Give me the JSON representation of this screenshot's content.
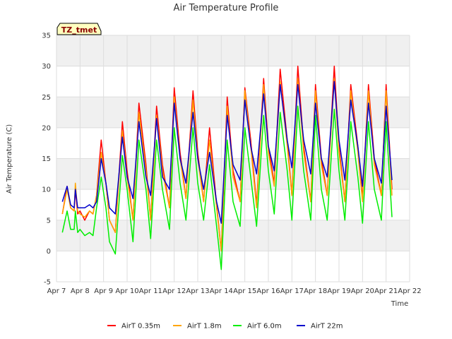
{
  "chart_data": {
    "type": "line",
    "title": "Air Temperature Profile",
    "xlabel": "Time",
    "ylabel": "Air Temperature (C)",
    "station_label": "TZ_tmet",
    "ylim": [
      -5,
      35
    ],
    "y_ticks": [
      -5,
      0,
      5,
      10,
      15,
      20,
      25,
      30,
      35
    ],
    "xlim": [
      7,
      22
    ],
    "x_ticks": [
      7,
      8,
      9,
      10,
      11,
      12,
      13,
      14,
      15,
      16,
      17,
      18,
      19,
      20,
      21,
      22
    ],
    "x_tick_labels": [
      "Apr 7",
      "Apr 8",
      "Apr 9",
      "Apr 10",
      "Apr 11",
      "Apr 12",
      "Apr 13",
      "Apr 14",
      "Apr 15",
      "Apr 16",
      "Apr 17",
      "Apr 18",
      "Apr 19",
      "Apr 20",
      "Apr 21",
      "Apr 22"
    ],
    "grid": true,
    "legend_position": "bottom",
    "series": [
      {
        "name": "AirT 0.35m",
        "color": "#ff0000",
        "x": [
          7.25,
          7.45,
          7.6,
          7.75,
          7.8,
          7.9,
          8.0,
          8.2,
          8.4,
          8.55,
          8.7,
          8.9,
          9.1,
          9.25,
          9.5,
          9.8,
          10.0,
          10.25,
          10.5,
          10.8,
          11.0,
          11.25,
          11.5,
          11.8,
          12.0,
          12.25,
          12.5,
          12.8,
          13.0,
          13.25,
          13.5,
          13.8,
          14.0,
          14.25,
          14.5,
          14.8,
          15.0,
          15.25,
          15.5,
          15.8,
          16.0,
          16.25,
          16.5,
          16.8,
          17.0,
          17.25,
          17.5,
          17.8,
          18.0,
          18.25,
          18.5,
          18.8,
          19.0,
          19.25,
          19.5,
          19.8,
          20.0,
          20.25,
          20.5,
          20.8,
          21.0,
          21.25
        ],
        "y": [
          6,
          10.5,
          7,
          6.5,
          10,
          6,
          6.5,
          5,
          6.5,
          6,
          9,
          18,
          11,
          5,
          3,
          21,
          13,
          5,
          24,
          14,
          5,
          23.5,
          14,
          7,
          26.5,
          16,
          8.5,
          26,
          16,
          8,
          20,
          7.5,
          0,
          25,
          13,
          8,
          26.5,
          18,
          7.5,
          28,
          17,
          11,
          29.5,
          18,
          9,
          30,
          17,
          8,
          27,
          15,
          9,
          30,
          17,
          8,
          27,
          17,
          8.5,
          27,
          15,
          9,
          27,
          10
        ]
      },
      {
        "name": "AirT 1.8m",
        "color": "#ffa500",
        "x": [
          7.25,
          7.45,
          7.6,
          7.75,
          7.8,
          7.9,
          8.0,
          8.2,
          8.4,
          8.55,
          8.7,
          8.9,
          9.1,
          9.25,
          9.5,
          9.8,
          10.0,
          10.25,
          10.5,
          10.8,
          11.0,
          11.25,
          11.5,
          11.8,
          12.0,
          12.25,
          12.5,
          12.8,
          13.0,
          13.25,
          13.5,
          13.8,
          14.0,
          14.25,
          14.5,
          14.8,
          15.0,
          15.25,
          15.5,
          15.8,
          16.0,
          16.25,
          16.5,
          16.8,
          17.0,
          17.25,
          17.5,
          17.8,
          18.0,
          18.25,
          18.5,
          18.8,
          19.0,
          19.25,
          19.5,
          19.8,
          20.0,
          20.25,
          20.5,
          20.8,
          21.0,
          21.25
        ],
        "y": [
          6,
          10,
          7,
          6.5,
          11,
          6.5,
          6,
          5.5,
          6.5,
          6,
          9,
          16,
          11,
          5,
          3,
          19.5,
          12,
          5,
          22.5,
          13,
          5,
          22,
          13,
          7,
          25,
          15,
          8.5,
          24.5,
          15,
          8,
          18,
          7,
          0,
          23.5,
          12,
          8,
          26,
          17,
          7,
          27,
          16,
          10.5,
          27.5,
          17,
          9,
          28,
          16,
          8,
          26,
          14,
          9,
          28,
          16,
          8,
          26,
          16,
          8,
          26,
          14,
          9,
          26,
          9
        ]
      },
      {
        "name": "AirT 6.0m",
        "color": "#00ee00",
        "x": [
          7.25,
          7.45,
          7.6,
          7.75,
          7.8,
          7.9,
          8.0,
          8.2,
          8.4,
          8.55,
          8.7,
          8.9,
          9.1,
          9.25,
          9.5,
          9.8,
          10.0,
          10.25,
          10.5,
          10.8,
          11.0,
          11.25,
          11.5,
          11.8,
          12.0,
          12.25,
          12.5,
          12.8,
          13.0,
          13.25,
          13.5,
          13.8,
          14.0,
          14.25,
          14.5,
          14.8,
          15.0,
          15.25,
          15.5,
          15.8,
          16.0,
          16.25,
          16.5,
          16.8,
          17.0,
          17.25,
          17.5,
          17.8,
          18.0,
          18.25,
          18.5,
          18.8,
          19.0,
          19.25,
          19.5,
          19.8,
          20.0,
          20.25,
          20.5,
          20.8,
          21.0,
          21.25
        ],
        "y": [
          3,
          6.5,
          3.5,
          3.5,
          6.5,
          3,
          3.5,
          2.5,
          3,
          2.5,
          7,
          12,
          7,
          1.5,
          -0.5,
          15.5,
          10,
          1.5,
          18,
          10,
          2,
          18,
          10,
          3.5,
          20,
          11,
          5,
          20,
          11,
          5,
          14,
          4,
          -3,
          18,
          8,
          4,
          20,
          12,
          4,
          22,
          13,
          6,
          22.5,
          13,
          5,
          23.5,
          13,
          5,
          22,
          10,
          5,
          23,
          13,
          5,
          21,
          12,
          4.5,
          21,
          10,
          5,
          21,
          5.5
        ]
      },
      {
        "name": "AirT 22m",
        "color": "#0000cc",
        "x": [
          7.25,
          7.45,
          7.6,
          7.75,
          7.8,
          7.9,
          8.0,
          8.2,
          8.4,
          8.55,
          8.7,
          8.9,
          9.1,
          9.25,
          9.5,
          9.8,
          10.0,
          10.25,
          10.5,
          10.8,
          11.0,
          11.25,
          11.5,
          11.8,
          12.0,
          12.25,
          12.5,
          12.8,
          13.0,
          13.25,
          13.5,
          13.8,
          14.0,
          14.25,
          14.5,
          14.8,
          15.0,
          15.25,
          15.5,
          15.8,
          16.0,
          16.25,
          16.5,
          16.8,
          17.0,
          17.25,
          17.5,
          17.8,
          18.0,
          18.25,
          18.5,
          18.8,
          19.0,
          19.25,
          19.5,
          19.8,
          20.0,
          20.25,
          20.5,
          20.8,
          21.0,
          21.25
        ],
        "y": [
          8,
          10.5,
          7.5,
          7,
          10,
          7,
          7,
          7,
          7.5,
          7,
          8,
          15,
          11,
          7,
          6,
          18.5,
          12,
          8.5,
          21,
          12,
          9,
          21.5,
          12,
          10,
          24,
          15,
          11,
          22.5,
          15,
          10,
          16,
          8,
          4.5,
          22,
          14,
          11.5,
          24.5,
          17,
          12.5,
          25.5,
          17,
          13,
          27,
          18,
          13.5,
          27,
          18,
          12.5,
          24,
          15,
          12,
          27.5,
          18,
          11.5,
          24.5,
          17,
          10.5,
          24,
          15,
          11,
          23.5,
          11.5
        ]
      }
    ]
  }
}
